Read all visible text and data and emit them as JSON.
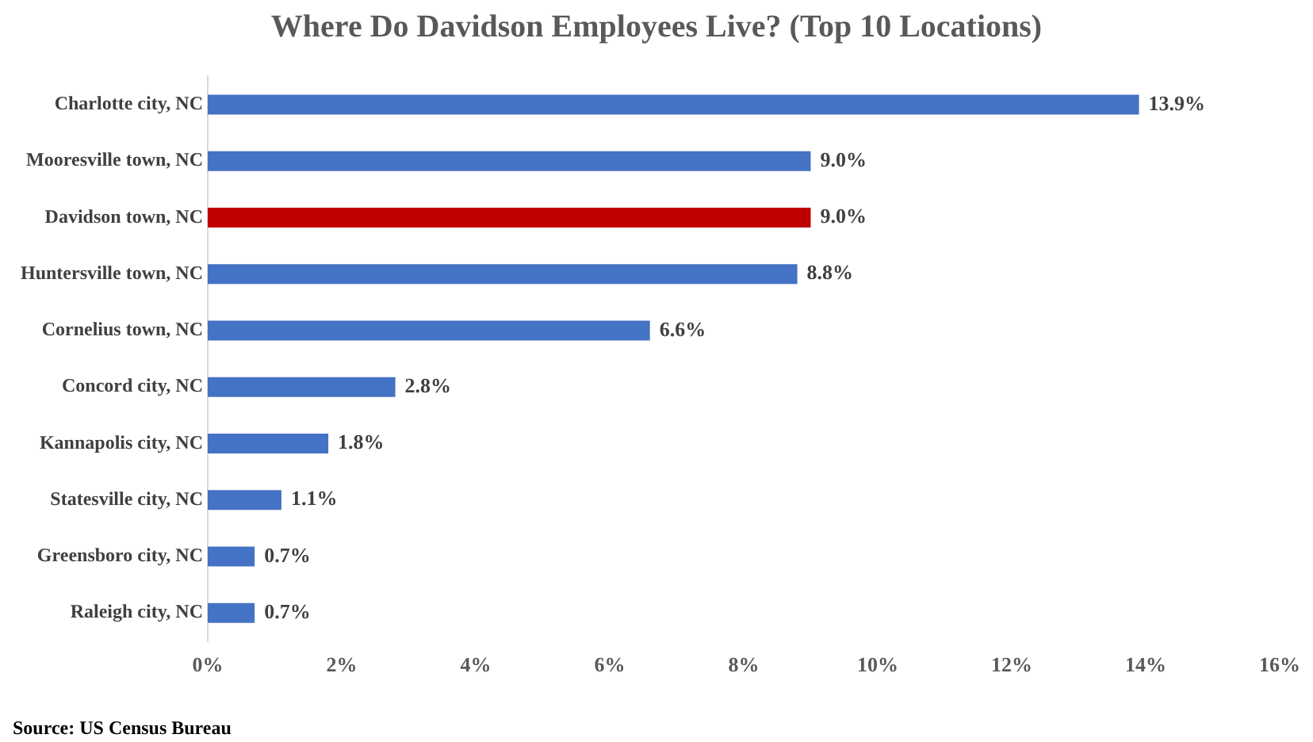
{
  "chart_data": {
    "type": "bar",
    "orientation": "horizontal",
    "title": "Where Do Davidson Employees Live? (Top 10 Locations)",
    "categories": [
      "Charlotte city, NC",
      "Mooresville town, NC",
      "Davidson town, NC",
      "Huntersville town, NC",
      "Cornelius town, NC",
      "Concord city, NC",
      "Kannapolis city, NC",
      "Statesville city, NC",
      "Greensboro city, NC",
      "Raleigh city, NC"
    ],
    "values": [
      13.9,
      9.0,
      9.0,
      8.8,
      6.6,
      2.8,
      1.8,
      1.1,
      0.7,
      0.7
    ],
    "colors": [
      "#4472c4",
      "#4472c4",
      "#c00000",
      "#4472c4",
      "#4472c4",
      "#4472c4",
      "#4472c4",
      "#4472c4",
      "#4472c4",
      "#4472c4"
    ],
    "value_labels": [
      "13.9%",
      "9.0%",
      "9.0%",
      "8.8%",
      "6.6%",
      "2.8%",
      "1.8%",
      "1.1%",
      "0.7%",
      "0.7%"
    ],
    "xlim": [
      0,
      16
    ],
    "xticks": [
      {
        "value": 0,
        "label": "0%"
      },
      {
        "value": 2,
        "label": "2%"
      },
      {
        "value": 4,
        "label": "4%"
      },
      {
        "value": 6,
        "label": "6%"
      },
      {
        "value": 8,
        "label": "8%"
      },
      {
        "value": 10,
        "label": "10%"
      },
      {
        "value": 12,
        "label": "12%"
      },
      {
        "value": 14,
        "label": "14%"
      },
      {
        "value": 16,
        "label": "16%"
      }
    ],
    "grid": false,
    "legend": false,
    "annotations": [
      "Source: US Census Bureau"
    ]
  }
}
